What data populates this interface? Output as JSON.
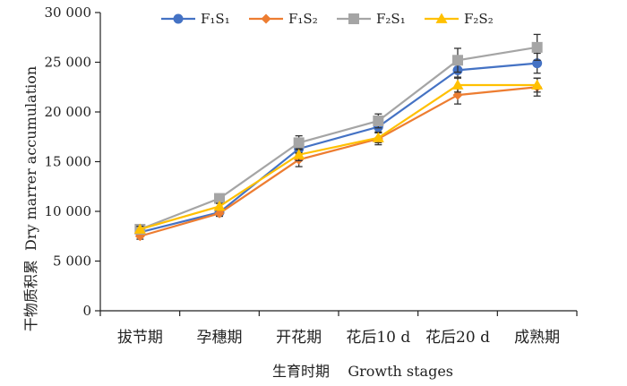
{
  "chart_data": {
    "type": "line",
    "categories": [
      "拔节期",
      "孕穗期",
      "开花期",
      "花后10 d",
      "花后20 d",
      "成熟期"
    ],
    "xlabel": "生育时期    Growth stages",
    "ylabel": "干物质积累  Dry marrer accumulation",
    "ylim": [
      0,
      30000
    ],
    "yticks": [
      0,
      5000,
      10000,
      15000,
      20000,
      25000,
      30000
    ],
    "ytick_labels": [
      "0",
      "5 000",
      "10 000",
      "15 000",
      "20 000",
      "25 000",
      "30 000"
    ],
    "grid": false,
    "legend": "top-center",
    "series": [
      {
        "name": "F₁S₁",
        "color": "#4472C4",
        "marker": "circle",
        "values": [
          7900,
          9900,
          16300,
          18500,
          24200,
          24900
        ],
        "errors": [
          300,
          300,
          500,
          500,
          700,
          1000
        ]
      },
      {
        "name": "F₁S₂",
        "color": "#ED7D31",
        "marker": "diamond",
        "values": [
          7500,
          9800,
          15200,
          17300,
          21700,
          22500
        ],
        "errors": [
          300,
          300,
          700,
          600,
          900,
          900
        ]
      },
      {
        "name": "F₂S₁",
        "color": "#A5A5A5",
        "marker": "square",
        "values": [
          8200,
          11300,
          16900,
          19100,
          25200,
          26500
        ],
        "errors": [
          300,
          300,
          700,
          700,
          1200,
          1300
        ]
      },
      {
        "name": "F₂S₂",
        "color": "#FFC000",
        "marker": "triangle",
        "values": [
          8200,
          10500,
          15700,
          17400,
          22700,
          22700
        ],
        "errors": [
          300,
          300,
          600,
          500,
          700,
          700
        ]
      }
    ]
  }
}
